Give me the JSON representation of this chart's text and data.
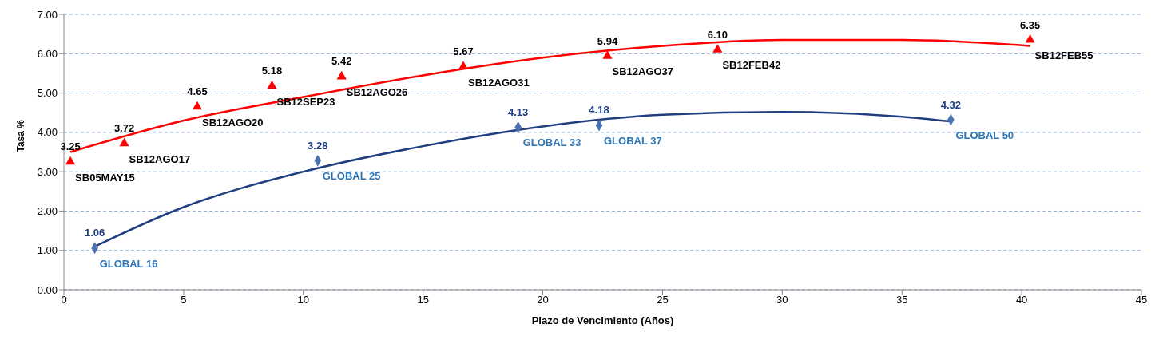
{
  "chart_data": {
    "type": "scatter",
    "xlabel": "Plazo de Vencimiento  (Años)",
    "ylabel": "Tasa %",
    "xlim": [
      0,
      45
    ],
    "xticks": [
      0,
      5,
      10,
      15,
      20,
      25,
      30,
      35,
      40,
      45
    ],
    "ylim": [
      0,
      7
    ],
    "yticks": [
      {
        "value": 0,
        "label": "0.00"
      },
      {
        "value": 1,
        "label": "1.00"
      },
      {
        "value": 2,
        "label": "2.00"
      },
      {
        "value": 3,
        "label": "3.00"
      },
      {
        "value": 4,
        "label": "4.00"
      },
      {
        "value": 5,
        "label": "5.00"
      },
      {
        "value": 6,
        "label": "6.00"
      },
      {
        "value": 7,
        "label": "7.00"
      }
    ],
    "grid": "y",
    "legend": false,
    "series": [
      {
        "marker": "triangle",
        "color": "#ff0000",
        "x": [
          0.27,
          2.52,
          5.57,
          8.69,
          11.6,
          16.68,
          22.7,
          27.3,
          40.35
        ],
        "values": [
          3.25,
          3.72,
          4.65,
          5.18,
          5.42,
          5.67,
          5.94,
          6.1,
          6.35
        ],
        "value_labels": [
          "3.25",
          "3.72",
          "4.65",
          "5.18",
          "5.42",
          "5.67",
          "5.94",
          "6.10",
          "6.35"
        ]
      },
      {
        "marker": "diamond",
        "color": "#4a72b0",
        "x": [
          1.29,
          10.6,
          18.97,
          22.35,
          37.04
        ],
        "values": [
          1.06,
          3.28,
          4.13,
          4.18,
          4.32
        ],
        "value_labels": [
          "1.06",
          "3.28",
          "4.13",
          "4.18",
          "4.32"
        ]
      },
      {
        "type": "line",
        "marker": "none",
        "color": "#ff0000",
        "x": [
          0.27,
          5,
          10,
          15,
          20,
          25,
          30,
          35,
          40.35
        ],
        "values": [
          3.5,
          4.3,
          4.9,
          5.45,
          5.9,
          6.2,
          6.35,
          6.35,
          6.2
        ]
      },
      {
        "type": "line",
        "marker": "none",
        "color": "#1f3f80",
        "x": [
          1.29,
          5,
          10,
          15,
          20,
          25,
          30,
          35,
          37.04
        ],
        "values": [
          1.1,
          2.1,
          3.0,
          3.65,
          4.15,
          4.45,
          4.52,
          4.4,
          4.28
        ]
      }
    ],
    "annotations": [
      {
        "text": "SB05MAY15",
        "x": 0.27,
        "y": 3.25
      },
      {
        "text": "SB12AGO17",
        "x": 2.52,
        "y": 3.72
      },
      {
        "text": "SB12AGO20",
        "x": 5.57,
        "y": 4.65
      },
      {
        "text": "SB12SEP23",
        "x": 8.69,
        "y": 5.18
      },
      {
        "text": "SB12AGO26",
        "x": 11.6,
        "y": 5.42
      },
      {
        "text": "SB12AGO31",
        "x": 16.68,
        "y": 5.67
      },
      {
        "text": "SB12AGO37",
        "x": 22.7,
        "y": 5.94
      },
      {
        "text": "SB12FEB42",
        "x": 27.3,
        "y": 6.1
      },
      {
        "text": "SB12FEB55",
        "x": 40.35,
        "y": 6.35
      },
      {
        "text": "GLOBAL 16",
        "x": 1.29,
        "y": 1.06
      },
      {
        "text": "GLOBAL 25",
        "x": 10.6,
        "y": 3.28
      },
      {
        "text": "GLOBAL 33",
        "x": 18.97,
        "y": 4.13
      },
      {
        "text": "GLOBAL 37",
        "x": 22.35,
        "y": 4.18
      },
      {
        "text": "GLOBAL 50",
        "x": 37.04,
        "y": 4.32
      }
    ]
  }
}
